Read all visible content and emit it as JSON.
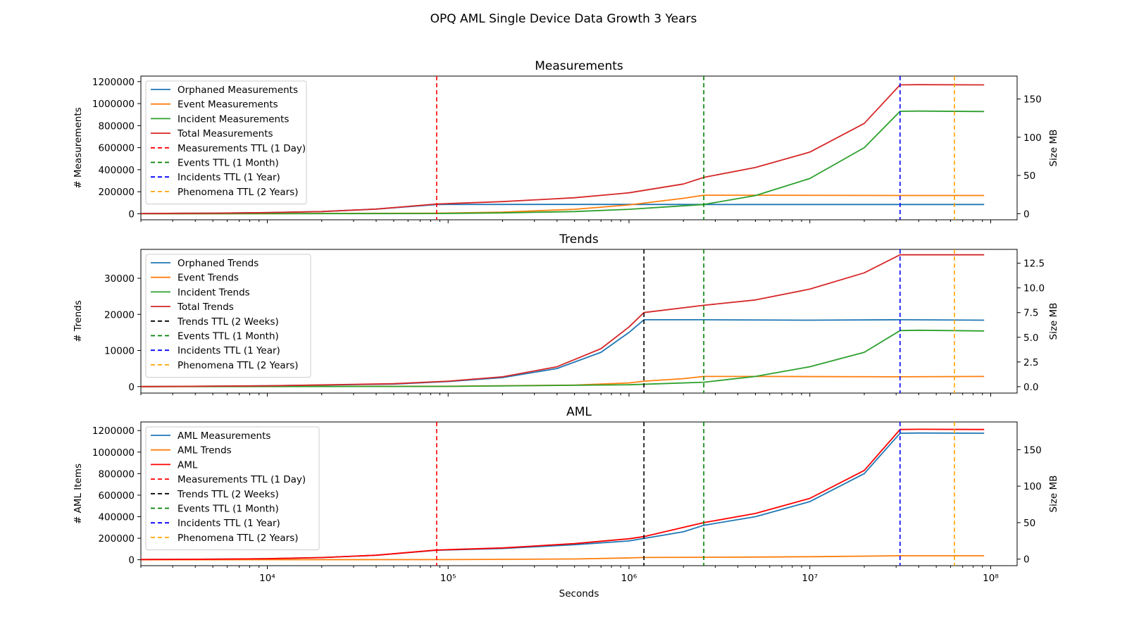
{
  "figure_title": "OPQ AML Single Device Data Growth 3 Years",
  "chart_data": [
    {
      "type": "line",
      "title": "Measurements",
      "xlabel": "",
      "ylabel": "# Measurements",
      "y2label": "Size MB",
      "xscale": "log",
      "xlim": [
        2000,
        140000000
      ],
      "ylim": [
        -55000,
        1250000
      ],
      "y2lim": [
        -8,
        180
      ],
      "yticks": [
        0,
        200000,
        400000,
        600000,
        800000,
        1000000,
        1200000
      ],
      "y2ticks": [
        0,
        50,
        100,
        150
      ],
      "xticks": [
        10000,
        100000,
        1000000,
        10000000,
        100000000
      ],
      "xtick_labels": [
        "",
        "",
        "",
        "",
        ""
      ],
      "legend_position": "upper-left",
      "series": [
        {
          "name": "Orphaned Measurements",
          "color": "#1f77b4",
          "style": "solid",
          "x": [
            2000,
            5000,
            10000,
            20000,
            40000,
            86400,
            200000,
            1000000,
            3000000,
            10000000,
            31536000,
            92000000
          ],
          "y": [
            2000,
            5000,
            10000,
            20000,
            42000,
            84000,
            84500,
            84500,
            84000,
            84000,
            84000,
            84000
          ]
        },
        {
          "name": "Event Measurements",
          "color": "#ff7f0e",
          "style": "solid",
          "x": [
            2000,
            10000,
            86400,
            200000,
            500000,
            1000000,
            2000000,
            2592000,
            5000000,
            31536000,
            92000000
          ],
          "y": [
            0,
            500,
            5000,
            15000,
            40000,
            80000,
            140000,
            168000,
            168000,
            166000,
            166000
          ]
        },
        {
          "name": "Incident Measurements",
          "color": "#2ca02c",
          "style": "solid",
          "x": [
            2000,
            86400,
            200000,
            500000,
            1000000,
            2592000,
            5000000,
            10000000,
            20000000,
            31536000,
            40000000,
            92000000
          ],
          "y": [
            0,
            2000,
            8000,
            20000,
            40000,
            84000,
            165000,
            320000,
            600000,
            930000,
            932000,
            928000
          ]
        },
        {
          "name": "Total Measurements",
          "color": "#d62728",
          "style": "solid",
          "x": [
            2000,
            5000,
            10000,
            20000,
            40000,
            86400,
            200000,
            500000,
            1000000,
            2000000,
            2592000,
            5000000,
            10000000,
            20000000,
            31536000,
            40000000,
            92000000
          ],
          "y": [
            2000,
            5000,
            10000,
            20000,
            42000,
            88000,
            110000,
            145000,
            190000,
            270000,
            330000,
            420000,
            560000,
            820000,
            1170000,
            1172000,
            1170000
          ]
        },
        {
          "name": "Measurements TTL (1 Day)",
          "color": "#ff0000",
          "style": "dashed",
          "x_value": 86400
        },
        {
          "name": "Events TTL (1 Month)",
          "color": "#008000",
          "style": "dashed",
          "x_value": 2592000
        },
        {
          "name": "Incidents TTL (1 Year)",
          "color": "#0000ff",
          "style": "dashed",
          "x_value": 31536000
        },
        {
          "name": "Phenomena TTL (2 Years)",
          "color": "#ffa500",
          "style": "dashed",
          "x_value": 63072000
        }
      ]
    },
    {
      "type": "line",
      "title": "Trends",
      "xlabel": "",
      "ylabel": "# Trends",
      "y2label": "Size MB",
      "xscale": "log",
      "xlim": [
        2000,
        140000000
      ],
      "ylim": [
        -1800,
        38000
      ],
      "y2lim": [
        -0.65,
        13.9
      ],
      "yticks": [
        0,
        10000,
        20000,
        30000
      ],
      "y2ticks": [
        0.0,
        2.5,
        5.0,
        7.5,
        10.0,
        12.5
      ],
      "xticks": [
        10000,
        100000,
        1000000,
        10000000,
        100000000
      ],
      "xtick_labels": [
        "",
        "",
        "",
        "",
        ""
      ],
      "legend_position": "upper-left",
      "series": [
        {
          "name": "Orphaned Trends",
          "color": "#1f77b4",
          "style": "solid",
          "x": [
            2000,
            10000,
            50000,
            100000,
            200000,
            400000,
            700000,
            1000000,
            1209600,
            2592000,
            10000000,
            31536000,
            92000000
          ],
          "y": [
            0,
            200,
            700,
            1400,
            2500,
            5000,
            9500,
            15000,
            18500,
            18500,
            18400,
            18500,
            18400
          ]
        },
        {
          "name": "Event Trends",
          "color": "#ff7f0e",
          "style": "solid",
          "x": [
            2000,
            100000,
            500000,
            1000000,
            1209600,
            2000000,
            2592000,
            5000000,
            31536000,
            92000000
          ],
          "y": [
            0,
            100,
            400,
            1000,
            1500,
            2200,
            2800,
            2800,
            2700,
            2800
          ]
        },
        {
          "name": "Incident Trends",
          "color": "#2ca02c",
          "style": "solid",
          "x": [
            2000,
            100000,
            1000000,
            2592000,
            5000000,
            10000000,
            20000000,
            31536000,
            40000000,
            92000000
          ],
          "y": [
            0,
            50,
            500,
            1200,
            2800,
            5500,
            9500,
            15500,
            15600,
            15400
          ]
        },
        {
          "name": "Total Trends",
          "color": "#d62728",
          "style": "solid",
          "x": [
            2000,
            10000,
            50000,
            100000,
            200000,
            400000,
            700000,
            1000000,
            1209600,
            2592000,
            5000000,
            10000000,
            20000000,
            31536000,
            40000000,
            92000000
          ],
          "y": [
            0,
            200,
            800,
            1500,
            2700,
            5500,
            10500,
            16500,
            20500,
            22500,
            24000,
            27000,
            31500,
            36500,
            36500,
            36500
          ]
        },
        {
          "name": "Trends TTL (2 Weeks)",
          "color": "#000000",
          "style": "dashed",
          "x_value": 1209600
        },
        {
          "name": "Events TTL (1 Month)",
          "color": "#008000",
          "style": "dashed",
          "x_value": 2592000
        },
        {
          "name": "Incidents TTL (1 Year)",
          "color": "#0000ff",
          "style": "dashed",
          "x_value": 31536000
        },
        {
          "name": "Phenomena TTL (2 Years)",
          "color": "#ffa500",
          "style": "dashed",
          "x_value": 63072000
        }
      ]
    },
    {
      "type": "line",
      "title": "AML",
      "xlabel": "Seconds",
      "ylabel": "# AML Items",
      "y2label": "Size MB",
      "xscale": "log",
      "xlim": [
        2000,
        140000000
      ],
      "ylim": [
        -55000,
        1280000
      ],
      "y2lim": [
        -9,
        188
      ],
      "yticks": [
        0,
        200000,
        400000,
        600000,
        800000,
        1000000,
        1200000
      ],
      "y2ticks": [
        0,
        50,
        100,
        150
      ],
      "xticks": [
        10000,
        100000,
        1000000,
        10000000,
        100000000
      ],
      "xtick_labels": [
        "10⁴",
        "10⁵",
        "10⁶",
        "10⁷",
        "10⁸"
      ],
      "legend_position": "upper-left",
      "series": [
        {
          "name": "AML Measurements",
          "color": "#1f77b4",
          "style": "solid",
          "x": [
            2000,
            5000,
            10000,
            20000,
            40000,
            86400,
            200000,
            500000,
            1000000,
            2000000,
            2592000,
            5000000,
            10000000,
            20000000,
            31536000,
            40000000,
            92000000
          ],
          "y": [
            2000,
            5000,
            10000,
            20000,
            42000,
            88000,
            105000,
            140000,
            175000,
            260000,
            320000,
            400000,
            540000,
            800000,
            1175000,
            1177000,
            1175000
          ]
        },
        {
          "name": "AML Trends",
          "color": "#ff7f0e",
          "style": "solid",
          "x": [
            2000,
            100000,
            500000,
            1000000,
            1209600,
            2592000,
            5000000,
            10000000,
            31536000,
            92000000
          ],
          "y": [
            0,
            1500,
            7000,
            17000,
            21000,
            23000,
            25000,
            28000,
            37000,
            37000
          ]
        },
        {
          "name": "AML",
          "color": "#ff0000",
          "style": "solid",
          "x": [
            2000,
            5000,
            10000,
            20000,
            40000,
            86400,
            200000,
            500000,
            1000000,
            1209600,
            2592000,
            5000000,
            10000000,
            20000000,
            31536000,
            40000000,
            92000000
          ],
          "y": [
            2000,
            5000,
            10000,
            20000,
            42000,
            90000,
            110000,
            150000,
            195000,
            215000,
            345000,
            430000,
            570000,
            830000,
            1210000,
            1212000,
            1210000
          ]
        },
        {
          "name": "Measurements TTL (1 Day)",
          "color": "#ff0000",
          "style": "dashed",
          "x_value": 86400
        },
        {
          "name": "Trends TTL (2 Weeks)",
          "color": "#000000",
          "style": "dashed",
          "x_value": 1209600
        },
        {
          "name": "Events TTL (1 Month)",
          "color": "#008000",
          "style": "dashed",
          "x_value": 2592000
        },
        {
          "name": "Incidents TTL (1 Year)",
          "color": "#0000ff",
          "style": "dashed",
          "x_value": 31536000
        },
        {
          "name": "Phenomena TTL (2 Years)",
          "color": "#ffa500",
          "style": "dashed",
          "x_value": 63072000
        }
      ]
    }
  ]
}
